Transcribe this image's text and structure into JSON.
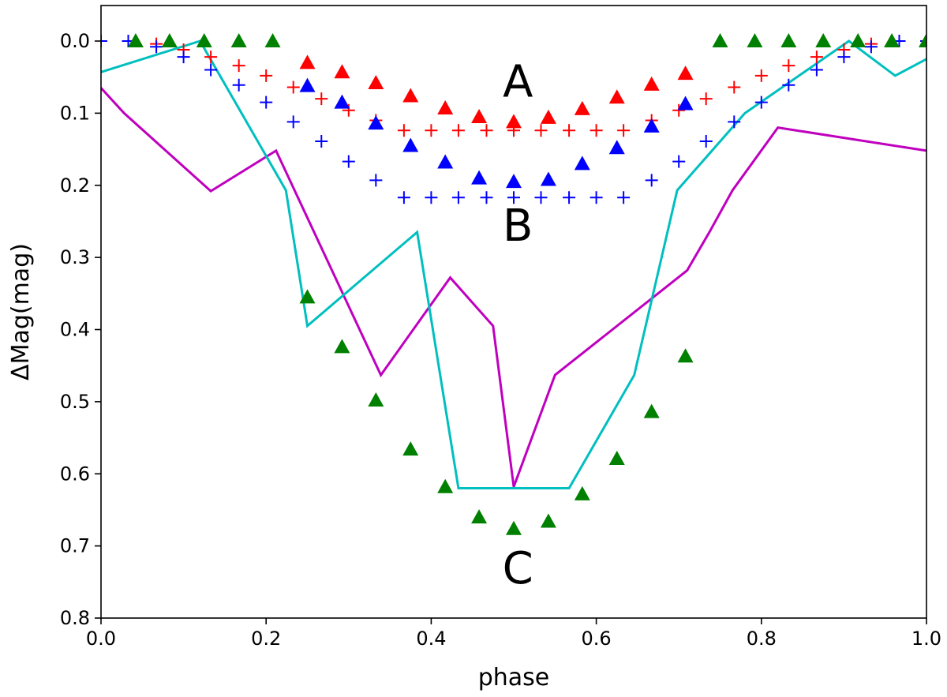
{
  "chart_data": {
    "type": "scatter",
    "title": "",
    "xlabel": "phase",
    "ylabel": "ΔMag(mag)",
    "xlim": [
      0.0,
      1.0
    ],
    "ylim": [
      0.8,
      -0.05
    ],
    "y_inverted": true,
    "grid": false,
    "x_ticks": [
      "0.0",
      "0.2",
      "0.4",
      "0.6",
      "0.8",
      "1.0"
    ],
    "y_ticks": [
      "0.0",
      "0.1",
      "0.2",
      "0.3",
      "0.4",
      "0.5",
      "0.6",
      "0.7",
      "0.8"
    ],
    "annotations": [
      {
        "text": "A",
        "x": 0.505,
        "y": 0.055
      },
      {
        "text": "B",
        "x": 0.505,
        "y": 0.255
      },
      {
        "text": "C",
        "x": 0.505,
        "y": 0.73
      }
    ],
    "series": [
      {
        "marker": "plus",
        "color": "#ff0000",
        "x": [
          0.0,
          0.033,
          0.067,
          0.1,
          0.133,
          0.167,
          0.2,
          0.233,
          0.267,
          0.3,
          0.333,
          0.367,
          0.4,
          0.433,
          0.467,
          0.5,
          0.533,
          0.567,
          0.6,
          0.633,
          0.667,
          0.7,
          0.733,
          0.767,
          0.8,
          0.833,
          0.867,
          0.9,
          0.933,
          0.967,
          1.0
        ],
        "y": [
          0.0,
          0.0,
          0.004,
          0.012,
          0.022,
          0.034,
          0.048,
          0.064,
          0.08,
          0.096,
          0.11,
          0.124,
          0.124,
          0.124,
          0.124,
          0.124,
          0.124,
          0.124,
          0.124,
          0.124,
          0.11,
          0.096,
          0.08,
          0.064,
          0.048,
          0.034,
          0.022,
          0.012,
          0.004,
          0.0,
          0.0
        ]
      },
      {
        "marker": "plus",
        "color": "#0000ff",
        "x": [
          0.0,
          0.033,
          0.067,
          0.1,
          0.133,
          0.167,
          0.2,
          0.233,
          0.267,
          0.3,
          0.333,
          0.367,
          0.4,
          0.433,
          0.467,
          0.5,
          0.533,
          0.567,
          0.6,
          0.633,
          0.667,
          0.7,
          0.733,
          0.767,
          0.8,
          0.833,
          0.867,
          0.9,
          0.933,
          0.967,
          1.0
        ],
        "y": [
          0.0,
          0.0,
          0.008,
          0.022,
          0.04,
          0.061,
          0.085,
          0.112,
          0.139,
          0.167,
          0.193,
          0.217,
          0.217,
          0.217,
          0.217,
          0.217,
          0.217,
          0.217,
          0.217,
          0.217,
          0.193,
          0.167,
          0.139,
          0.112,
          0.085,
          0.061,
          0.04,
          0.022,
          0.008,
          0.0,
          0.0
        ]
      },
      {
        "marker": "triangle",
        "color": "#ff0000",
        "x": [
          0.25,
          0.292,
          0.333,
          0.375,
          0.417,
          0.458,
          0.5,
          0.542,
          0.583,
          0.625,
          0.667,
          0.708
        ],
        "y": [
          0.03,
          0.043,
          0.058,
          0.076,
          0.093,
          0.105,
          0.112,
          0.106,
          0.094,
          0.078,
          0.06,
          0.045
        ]
      },
      {
        "marker": "triangle",
        "color": "#0000ff",
        "x": [
          0.25,
          0.292,
          0.333,
          0.375,
          0.417,
          0.458,
          0.5,
          0.542,
          0.583,
          0.625,
          0.667,
          0.708
        ],
        "y": [
          0.062,
          0.085,
          0.114,
          0.145,
          0.168,
          0.19,
          0.195,
          0.192,
          0.17,
          0.148,
          0.118,
          0.087
        ]
      },
      {
        "marker": "triangle",
        "color": "#008000",
        "x": [
          0.042,
          0.083,
          0.125,
          0.167,
          0.208,
          0.25,
          0.292,
          0.333,
          0.375,
          0.417,
          0.458,
          0.5,
          0.542,
          0.583,
          0.625,
          0.667,
          0.708,
          0.75,
          0.792,
          0.833,
          0.875,
          0.917,
          0.958,
          1.0
        ],
        "y": [
          0.0,
          0.0,
          0.0,
          0.0,
          0.0,
          0.355,
          0.424,
          0.498,
          0.566,
          0.618,
          0.66,
          0.676,
          0.666,
          0.628,
          0.579,
          0.514,
          0.437,
          0.0,
          0.0,
          0.0,
          0.0,
          0.0,
          0.0,
          0.0
        ]
      },
      {
        "marker": "line",
        "color": "#bf00bf",
        "x": [
          0.0,
          0.028,
          0.133,
          0.212,
          0.339,
          0.423,
          0.475,
          0.5,
          0.55,
          0.71,
          0.737,
          0.765,
          0.82,
          1.0
        ],
        "y": [
          0.065,
          0.1,
          0.208,
          0.152,
          0.463,
          0.328,
          0.395,
          0.618,
          0.463,
          0.318,
          0.265,
          0.207,
          0.12,
          0.152
        ]
      },
      {
        "marker": "line",
        "color": "#00bfbf",
        "x": [
          0.0,
          0.12,
          0.224,
          0.25,
          0.383,
          0.433,
          0.567,
          0.646,
          0.698,
          0.78,
          0.906,
          0.962,
          1.0
        ],
        "y": [
          0.043,
          0.0,
          0.207,
          0.395,
          0.265,
          0.62,
          0.62,
          0.463,
          0.207,
          0.1,
          0.0,
          0.048,
          0.025
        ]
      }
    ]
  }
}
